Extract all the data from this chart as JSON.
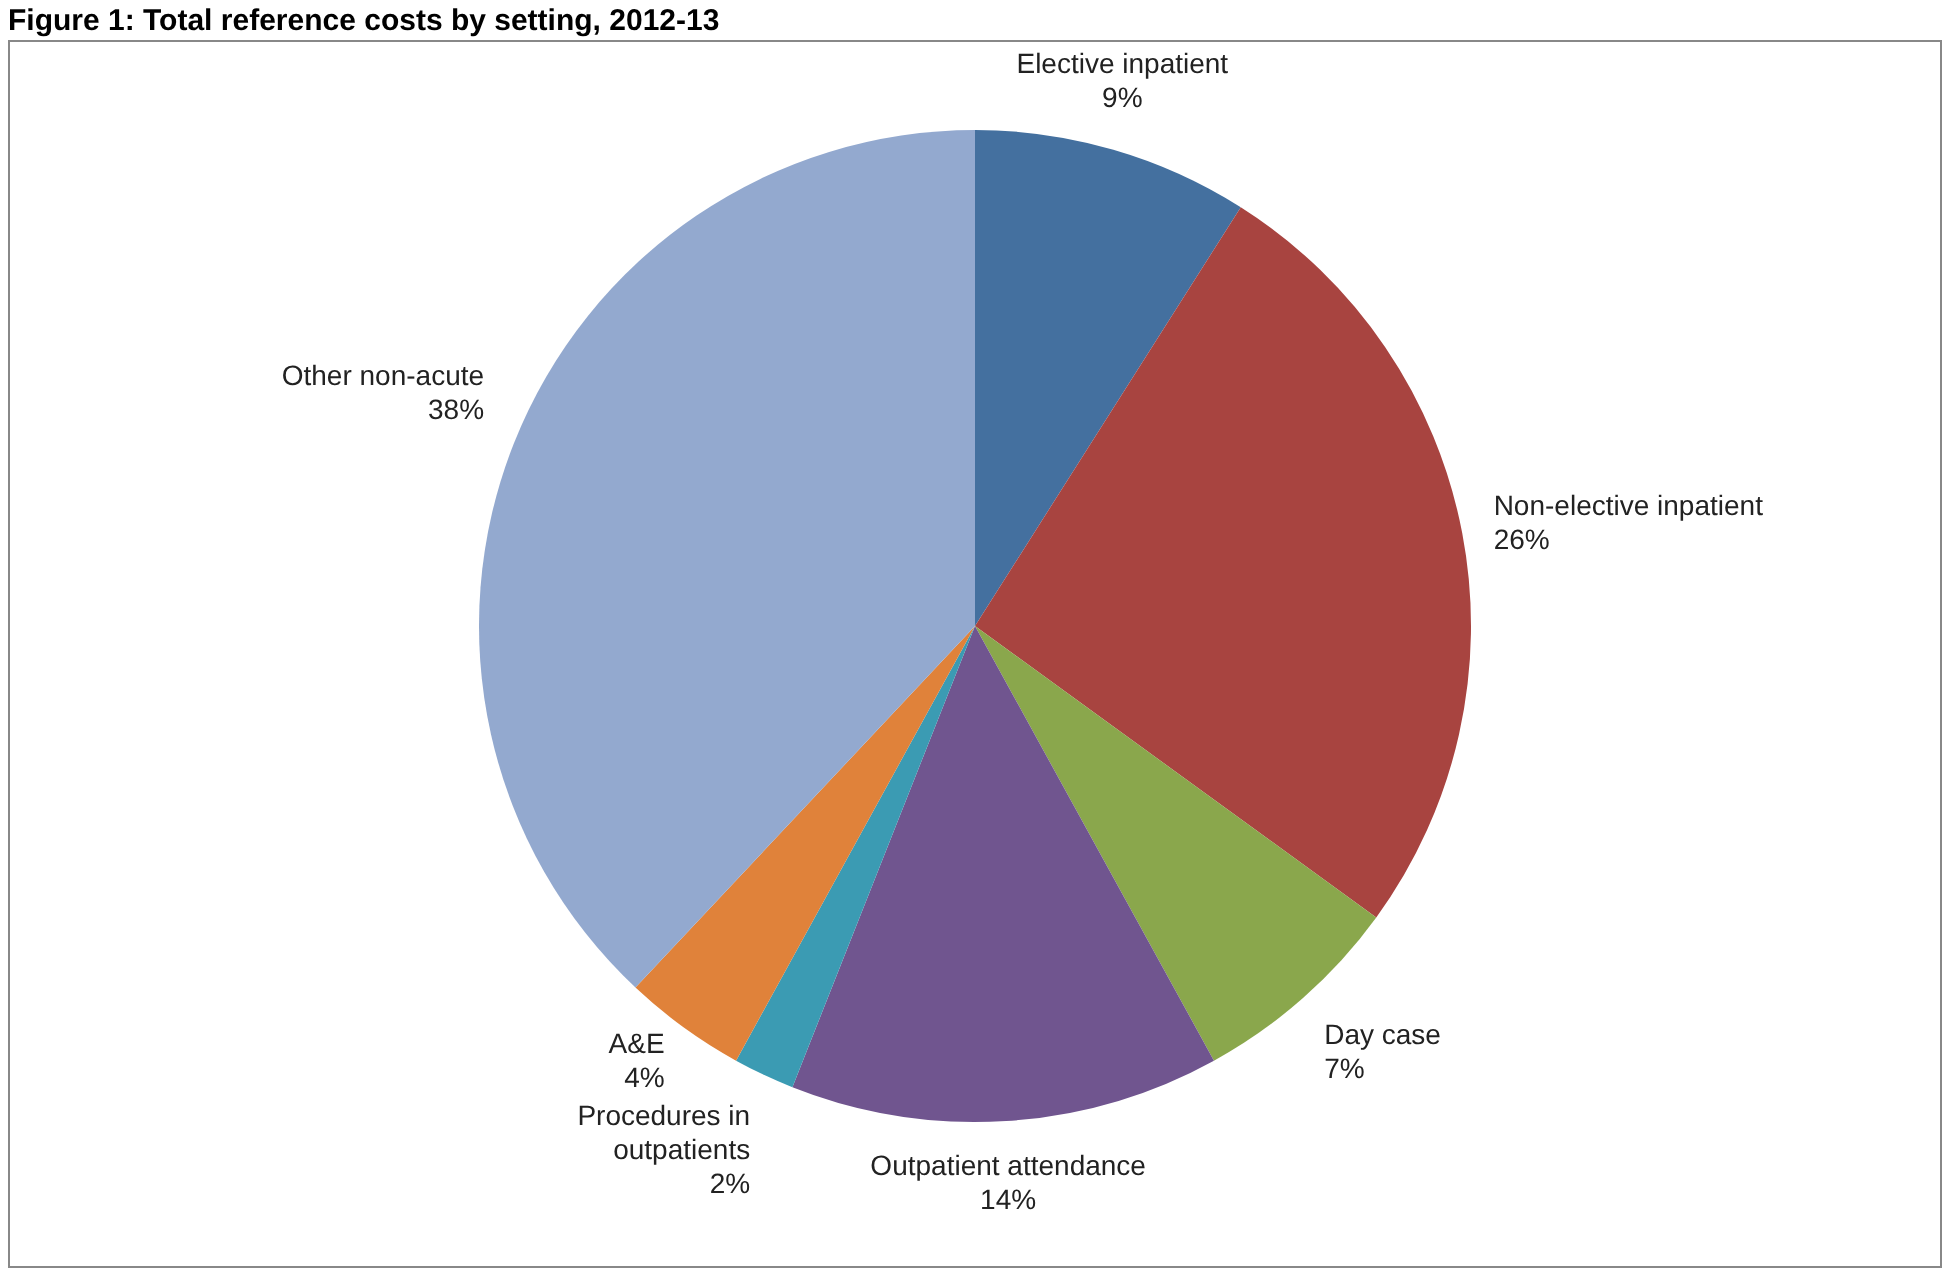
{
  "chart_data": {
    "type": "pie",
    "title": "Figure 1: Total reference costs by setting, 2012-13",
    "categories": [
      "Elective inpatient",
      "Non-elective inpatient",
      "Day case",
      "Outpatient attendance",
      "Procedures in outpatients",
      "A&E",
      "Other non-acute"
    ],
    "values": [
      9,
      26,
      7,
      14,
      2,
      4,
      38
    ],
    "colors": [
      "#44709f",
      "#a84440",
      "#8aa74c",
      "#70558f",
      "#3b9bb3",
      "#e0823a",
      "#93a9cf"
    ],
    "value_labels": [
      "9%",
      "26%",
      "7%",
      "14%",
      "2%",
      "4%",
      "38%"
    ],
    "legend": false
  }
}
